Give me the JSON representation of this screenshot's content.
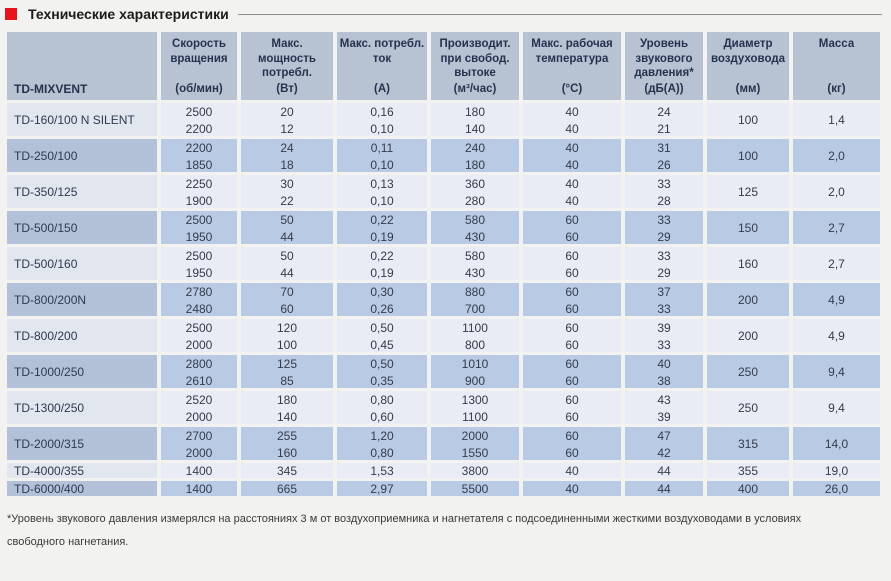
{
  "page": {
    "title": "Технические характеристики",
    "footnote_line1": "*Уровень звукового давления измерялся на расстояниях 3 м от воздухоприемника и нагнетателя с подсоединенными жесткими воздуховодами в условиях",
    "footnote_line2": "свободного нагнетания.",
    "colors": {
      "accent_red": "#e8121f",
      "header_bg": "#b7c2d2",
      "row_dark": "#b9cae4",
      "row_dark_model": "#b3c1d8",
      "row_light": "#e9ecf4",
      "row_light_model": "#e2e6ee"
    }
  },
  "table": {
    "model_header": "TD-MIXVENT",
    "columns": [
      {
        "key": "rpm",
        "label": "Скорость вращения",
        "unit": "(об/мин)"
      },
      {
        "key": "watt",
        "label": "Макс. мощность потребл.",
        "unit": "(Вт)"
      },
      {
        "key": "amp",
        "label": "Макс. потребл. ток",
        "unit": "(А)"
      },
      {
        "key": "flow",
        "label": "Производит. при свобод. вытоке",
        "unit": "(м³/час)"
      },
      {
        "key": "temp",
        "label": "Макс. рабочая температура",
        "unit": "(°С)"
      },
      {
        "key": "noise",
        "label": "Уровень звукового давления*",
        "unit": "(дБ(А))"
      },
      {
        "key": "diameter",
        "label": "Диаметр воздуховода",
        "unit": "(мм)"
      },
      {
        "key": "mass",
        "label": "Масса",
        "unit": "(кг)"
      }
    ],
    "rows": [
      {
        "model": "TD-160/100 N SILENT",
        "shade": "light",
        "rpm": [
          "2500",
          "2200"
        ],
        "watt": [
          "20",
          "12"
        ],
        "amp": [
          "0,16",
          "0,10"
        ],
        "flow": [
          "180",
          "140"
        ],
        "temp": [
          "40",
          "40"
        ],
        "noise": [
          "24",
          "21"
        ],
        "diameter": "100",
        "mass": "1,4"
      },
      {
        "model": "TD-250/100",
        "shade": "dark",
        "rpm": [
          "2200",
          "1850"
        ],
        "watt": [
          "24",
          "18"
        ],
        "amp": [
          "0,11",
          "0,10"
        ],
        "flow": [
          "240",
          "180"
        ],
        "temp": [
          "40",
          "40"
        ],
        "noise": [
          "31",
          "26"
        ],
        "diameter": "100",
        "mass": "2,0"
      },
      {
        "model": "TD-350/125",
        "shade": "light",
        "rpm": [
          "2250",
          "1900"
        ],
        "watt": [
          "30",
          "22"
        ],
        "amp": [
          "0,13",
          "0,10"
        ],
        "flow": [
          "360",
          "280"
        ],
        "temp": [
          "40",
          "40"
        ],
        "noise": [
          "33",
          "28"
        ],
        "diameter": "125",
        "mass": "2,0"
      },
      {
        "model": "TD-500/150",
        "shade": "dark",
        "rpm": [
          "2500",
          "1950"
        ],
        "watt": [
          "50",
          "44"
        ],
        "amp": [
          "0,22",
          "0,19"
        ],
        "flow": [
          "580",
          "430"
        ],
        "temp": [
          "60",
          "60"
        ],
        "noise": [
          "33",
          "29"
        ],
        "diameter": "150",
        "mass": "2,7"
      },
      {
        "model": "TD-500/160",
        "shade": "light",
        "rpm": [
          "2500",
          "1950"
        ],
        "watt": [
          "50",
          "44"
        ],
        "amp": [
          "0,22",
          "0,19"
        ],
        "flow": [
          "580",
          "430"
        ],
        "temp": [
          "60",
          "60"
        ],
        "noise": [
          "33",
          "29"
        ],
        "diameter": "160",
        "mass": "2,7"
      },
      {
        "model": "TD-800/200N",
        "shade": "dark",
        "rpm": [
          "2780",
          "2480"
        ],
        "watt": [
          "70",
          "60"
        ],
        "amp": [
          "0,30",
          "0,26"
        ],
        "flow": [
          "880",
          "700"
        ],
        "temp": [
          "60",
          "60"
        ],
        "noise": [
          "37",
          "33"
        ],
        "diameter": "200",
        "mass": "4,9"
      },
      {
        "model": "TD-800/200",
        "shade": "light",
        "rpm": [
          "2500",
          "2000"
        ],
        "watt": [
          "120",
          "100"
        ],
        "amp": [
          "0,50",
          "0,45"
        ],
        "flow": [
          "1100",
          "800"
        ],
        "temp": [
          "60",
          "60"
        ],
        "noise": [
          "39",
          "33"
        ],
        "diameter": "200",
        "mass": "4,9"
      },
      {
        "model": "TD-1000/250",
        "shade": "dark",
        "rpm": [
          "2800",
          "2610"
        ],
        "watt": [
          "125",
          "85"
        ],
        "amp": [
          "0,50",
          "0,35"
        ],
        "flow": [
          "1010",
          "900"
        ],
        "temp": [
          "60",
          "60"
        ],
        "noise": [
          "40",
          "38"
        ],
        "diameter": "250",
        "mass": "9,4"
      },
      {
        "model": "TD-1300/250",
        "shade": "light",
        "rpm": [
          "2520",
          "2000"
        ],
        "watt": [
          "180",
          "140"
        ],
        "amp": [
          "0,80",
          "0,60"
        ],
        "flow": [
          "1300",
          "1100"
        ],
        "temp": [
          "60",
          "60"
        ],
        "noise": [
          "43",
          "39"
        ],
        "diameter": "250",
        "mass": "9,4"
      },
      {
        "model": "TD-2000/315",
        "shade": "dark",
        "rpm": [
          "2700",
          "2000"
        ],
        "watt": [
          "255",
          "160"
        ],
        "amp": [
          "1,20",
          "0,80"
        ],
        "flow": [
          "2000",
          "1550"
        ],
        "temp": [
          "60",
          "60"
        ],
        "noise": [
          "47",
          "42"
        ],
        "diameter": "315",
        "mass": "14,0"
      },
      {
        "model": "TD-4000/355",
        "shade": "light",
        "rpm": [
          "1400"
        ],
        "watt": [
          "345"
        ],
        "amp": [
          "1,53"
        ],
        "flow": [
          "3800"
        ],
        "temp": [
          "40"
        ],
        "noise": [
          "44"
        ],
        "diameter": "355",
        "mass": "19,0"
      },
      {
        "model": "TD-6000/400",
        "shade": "dark",
        "rpm": [
          "1400"
        ],
        "watt": [
          "665"
        ],
        "amp": [
          "2,97"
        ],
        "flow": [
          "5500"
        ],
        "temp": [
          "40"
        ],
        "noise": [
          "44"
        ],
        "diameter": "400",
        "mass": "26,0"
      }
    ]
  }
}
